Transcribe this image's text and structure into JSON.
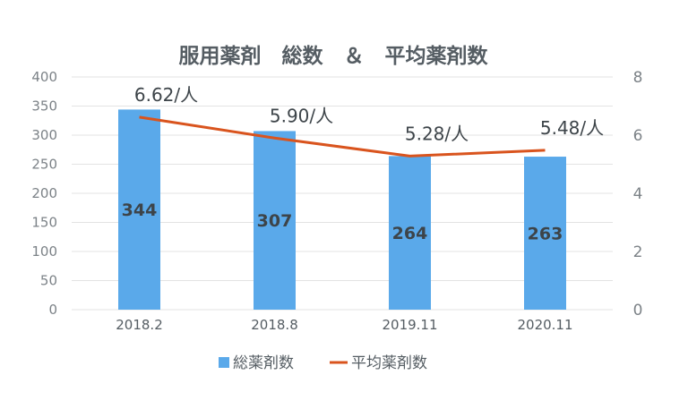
{
  "chart_data": {
    "type": "bar",
    "title": "服用薬剤　総数　＆　平均薬剤数",
    "categories": [
      "2018.2",
      "2018.8",
      "2019.11",
      "2020.11"
    ],
    "series": [
      {
        "name": "総薬剤数",
        "type": "bar",
        "axis": "left",
        "values": [
          344,
          307,
          264,
          263
        ],
        "data_labels": [
          "344",
          "307",
          "264",
          "263"
        ],
        "color": "#5aa9ea"
      },
      {
        "name": "平均薬剤数",
        "type": "line",
        "axis": "right",
        "values": [
          6.62,
          5.9,
          5.28,
          5.48
        ],
        "data_labels": [
          "6.62/人",
          "5.90/人",
          "5.28/人",
          "5.48/人"
        ],
        "color": "#d9541e"
      }
    ],
    "ylim_left": [
      0,
      400
    ],
    "yticks_left": [
      "0",
      "50",
      "100",
      "150",
      "200",
      "250",
      "300",
      "350",
      "400"
    ],
    "ylim_right": [
      0,
      8
    ],
    "yticks_right": [
      "0",
      "2",
      "4",
      "6",
      "8"
    ],
    "grid": true,
    "legend_position": "bottom"
  }
}
